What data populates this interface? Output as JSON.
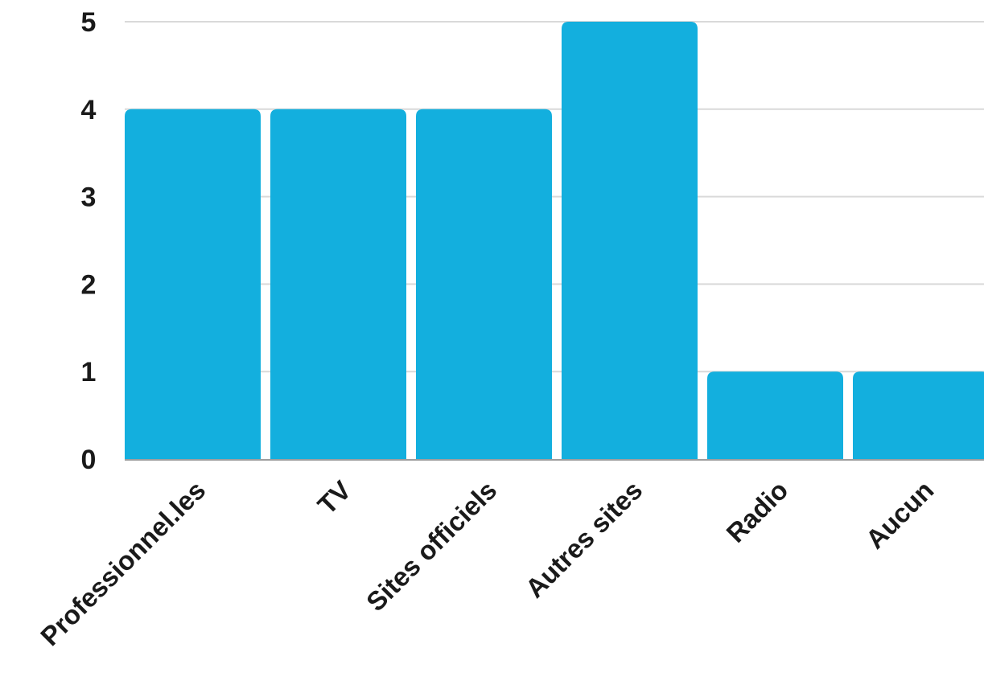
{
  "chart_data": {
    "type": "bar",
    "categories": [
      "Professionnel.les",
      "TV",
      "Sites officiels",
      "Autres sites",
      "Radio",
      "Aucun"
    ],
    "values": [
      4,
      4,
      4,
      5,
      1,
      1
    ],
    "ylim": [
      0,
      5
    ],
    "y_ticks": [
      0,
      1,
      2,
      3,
      4,
      5
    ],
    "grid": true,
    "bar_color": "#13AFDE",
    "grid_color": "#D9D9D9",
    "axis_color": "#9E9E9E",
    "title": "",
    "xlabel": "",
    "ylabel": ""
  }
}
